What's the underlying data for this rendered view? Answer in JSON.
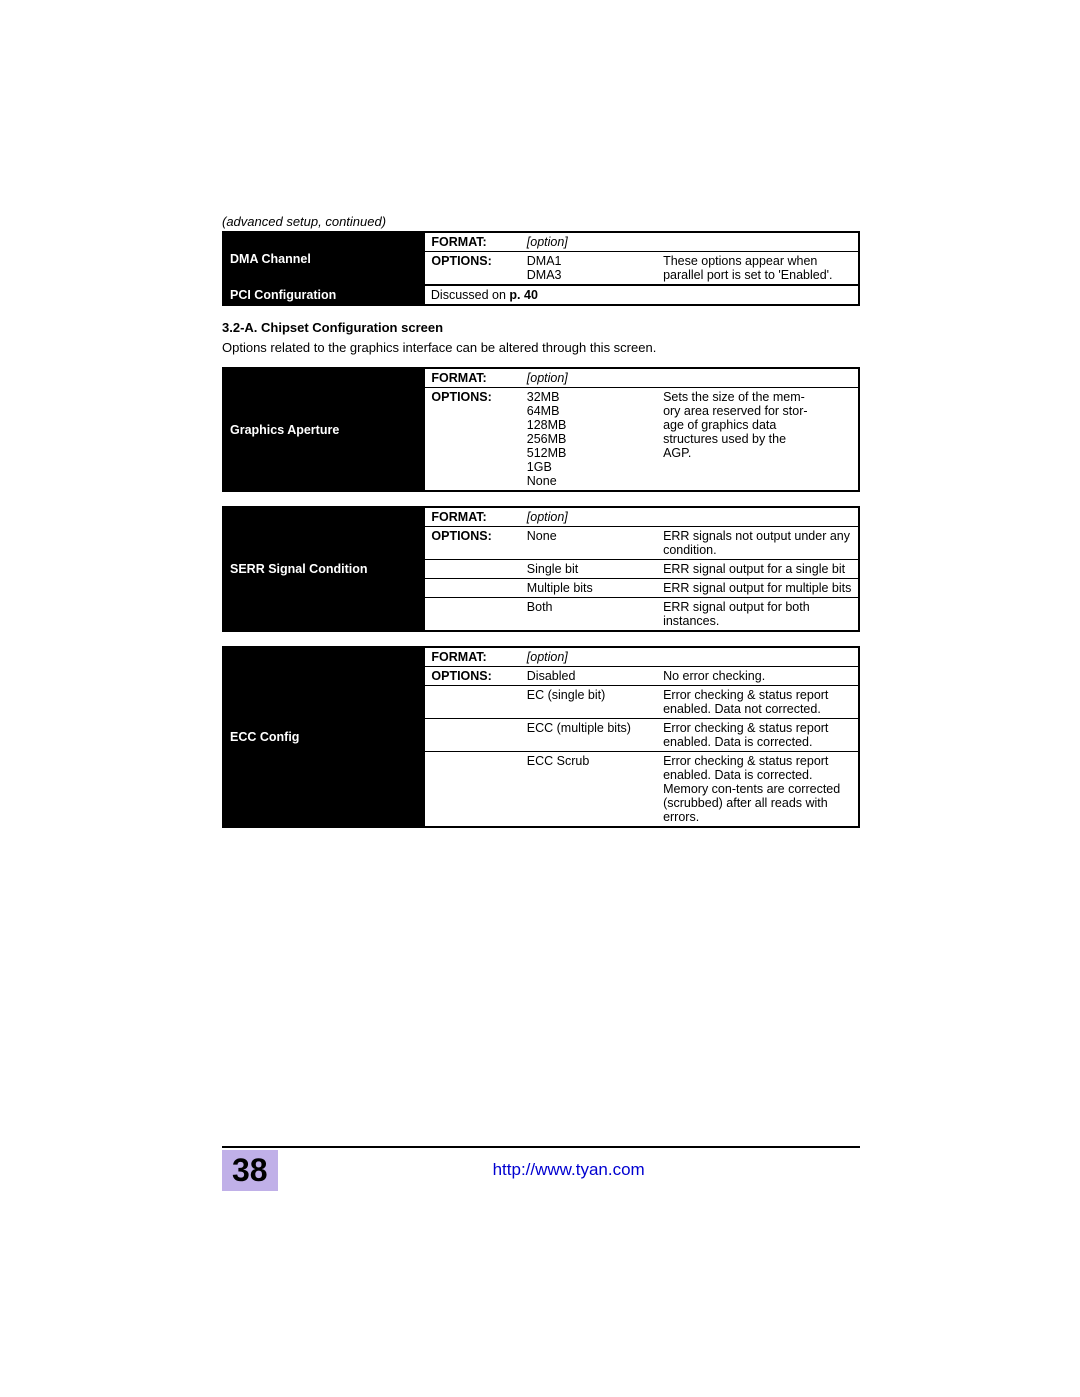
{
  "header": {
    "continued": "(advanced setup, continued)"
  },
  "table1": {
    "name": "DMA Channel",
    "format_label": "FORMAT:",
    "format_value": "[option]",
    "options_label": "OPTIONS:",
    "rows": [
      {
        "opt": "DMA1",
        "desc": "These options appear"
      },
      {
        "opt": "DMA3",
        "desc": "when parallel port is set to 'Enabled'."
      }
    ],
    "pci_label": "PCI Configuration",
    "pci_text_a": "Discussed on ",
    "pci_text_b": "p. 40"
  },
  "section": {
    "heading": "3.2-A. Chipset Configuration screen",
    "text": "Options related to the graphics interface can be altered through this screen."
  },
  "table2": {
    "name": "Graphics Aperture",
    "format_label": "FORMAT:",
    "format_value": "[option]",
    "options_label": "OPTIONS:",
    "col_opts": [
      "32MB",
      "64MB",
      "128MB",
      "256MB",
      "512MB",
      "1GB",
      "None"
    ],
    "desc_lines": [
      "Sets the size of the mem-",
      "ory area reserved for stor-",
      "age of graphics data",
      "structures used by the",
      "AGP."
    ]
  },
  "table3": {
    "name": "SERR Signal Condition",
    "format_label": "FORMAT:",
    "format_value": "[option]",
    "options_label": "OPTIONS:",
    "rows": [
      {
        "opt": "None",
        "desc": "ERR signals not output under any condition."
      },
      {
        "opt": "Single bit",
        "desc": "ERR signal output for a single bit"
      },
      {
        "opt": "Multiple bits",
        "desc": "ERR signal output for multiple bits"
      },
      {
        "opt": "Both",
        "desc": "ERR signal output for both instances."
      }
    ]
  },
  "table4": {
    "name": "ECC Config",
    "format_label": "FORMAT:",
    "format_value": "[option]",
    "options_label": "OPTIONS:",
    "rows": [
      {
        "opt": "Disabled",
        "desc": "No error checking."
      },
      {
        "opt": "EC (single bit)",
        "desc": "Error checking & status report enabled. Data not corrected."
      },
      {
        "opt": "ECC (multiple bits)",
        "desc": "Error checking & status report enabled. Data is corrected."
      },
      {
        "opt": "ECC Scrub",
        "desc": "Error checking & status report enabled. Data is corrected. Memory con-tents are corrected (scrubbed) after all reads with errors."
      }
    ]
  },
  "footer": {
    "page": "38",
    "url": "http://www.tyan.com"
  },
  "colors": {
    "page_num_bg": "#c0b0e8",
    "link": "#0000d0"
  }
}
